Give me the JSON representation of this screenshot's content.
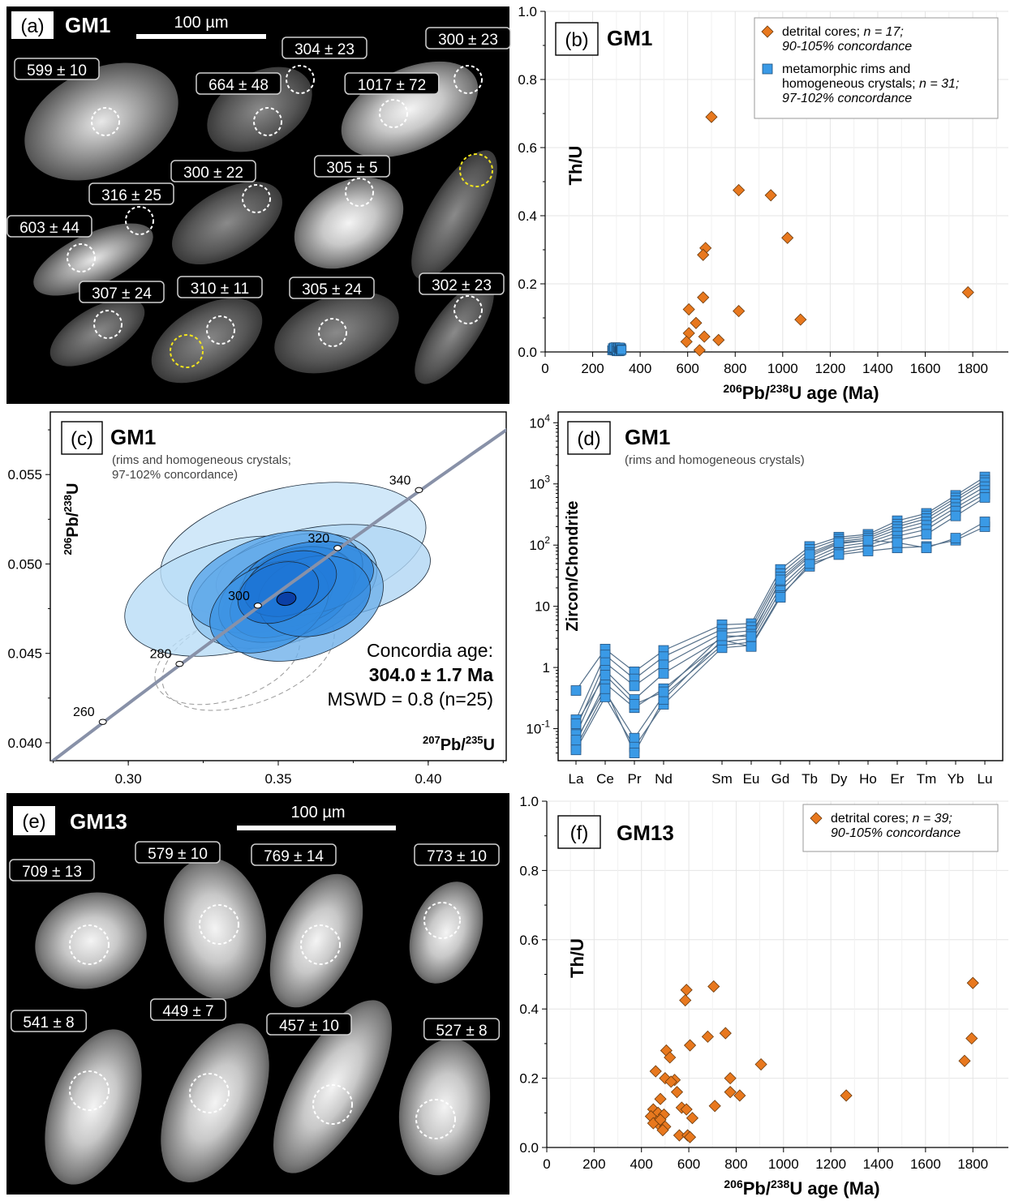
{
  "panels": {
    "a": {
      "letter": "(a)",
      "sample": "GM1",
      "scale": "100 µm",
      "labels": [
        "599 ± 10",
        "664 ± 48",
        "304 ± 23",
        "1017 ± 72",
        "300 ± 23",
        "300 ± 22",
        "305 ± 5",
        "316 ± 25",
        "603 ± 44",
        "307 ± 24",
        "310 ± 11",
        "305 ± 24",
        "302 ± 23"
      ]
    },
    "e": {
      "letter": "(e)",
      "sample": "GM13",
      "scale": "100 µm",
      "labels": [
        "709 ± 13",
        "579 ± 10",
        "769 ± 14",
        "773 ± 10",
        "541 ± 8",
        "449 ± 7",
        "457 ± 10",
        "527 ± 8"
      ]
    }
  },
  "colors": {
    "orange": "#e8781e",
    "blue": "#3a9ae6",
    "concordia": "#8891a8",
    "grid": "#e4e4e4"
  },
  "chart_data": [
    {
      "id": "b",
      "type": "scatter",
      "letter": "(b)",
      "sample": "GM1",
      "xlabel_pre": "206",
      "xlabel_mid": "Pb/",
      "xlabel_sup2": "238",
      "xlabel_post": "U age (Ma)",
      "ylabel": "Th/U",
      "xlim": [
        0,
        1950
      ],
      "ylim": [
        0,
        1.0
      ],
      "xticks": [
        0,
        200,
        400,
        600,
        800,
        1000,
        1200,
        1400,
        1600,
        1800
      ],
      "yticks": [
        0.0,
        0.2,
        0.4,
        0.6,
        0.8,
        1.0
      ],
      "ytick_labels": [
        "0.0",
        "0.2",
        "0.4",
        "0.6",
        "0.8",
        "1.0"
      ],
      "legend": [
        {
          "marker": "diamond",
          "line1": "detrital cores; n = 17;",
          "line2": "90-105% concordance"
        },
        {
          "marker": "square",
          "line1": "metamorphic rims and",
          "line2": "homogeneous crystals; n = 31;",
          "line3": "97-102% concordance"
        }
      ],
      "series": [
        {
          "name": "detrital cores",
          "marker": "diamond",
          "points": [
            [
              700,
              0.69
            ],
            [
              815,
              0.475
            ],
            [
              950,
              0.46
            ],
            [
              1020,
              0.335
            ],
            [
              1780,
              0.175
            ],
            [
              675,
              0.305
            ],
            [
              665,
              0.285
            ],
            [
              665,
              0.16
            ],
            [
              605,
              0.125
            ],
            [
              815,
              0.12
            ],
            [
              1075,
              0.095
            ],
            [
              635,
              0.085
            ],
            [
              605,
              0.055
            ],
            [
              670,
              0.045
            ],
            [
              595,
              0.03
            ],
            [
              730,
              0.035
            ],
            [
              650,
              0.005
            ]
          ]
        },
        {
          "name": "metamorphic rims and homogeneous crystals",
          "marker": "square",
          "points": [
            [
              282,
              0.005
            ],
            [
              287,
              0.008
            ],
            [
              292,
              0.004
            ],
            [
              295,
              0.01
            ],
            [
              298,
              0.006
            ],
            [
              300,
              0.012
            ],
            [
              302,
              0.003
            ],
            [
              304,
              0.008
            ],
            [
              305,
              0.011
            ],
            [
              306,
              0.005
            ],
            [
              308,
              0.009
            ],
            [
              310,
              0.007
            ],
            [
              312,
              0.012
            ],
            [
              314,
              0.004
            ],
            [
              316,
              0.009
            ],
            [
              318,
              0.006
            ],
            [
              320,
              0.011
            ],
            [
              296,
              0.014
            ],
            [
              301,
              0.002
            ],
            [
              309,
              0.013
            ],
            [
              285,
              0.011
            ],
            [
              290,
              0.013
            ],
            [
              299,
              0.009
            ],
            [
              303,
              0.005
            ],
            [
              307,
              0.013
            ],
            [
              311,
              0.002
            ],
            [
              313,
              0.01
            ],
            [
              315,
              0.013
            ],
            [
              317,
              0.003
            ],
            [
              319,
              0.008
            ],
            [
              322,
              0.006
            ]
          ]
        }
      ]
    },
    {
      "id": "c",
      "type": "concordia",
      "letter": "(c)",
      "sample": "GM1",
      "subtitle1": "(rims and homogeneous crystals;",
      "subtitle2": "97-102% concordance)",
      "xlabel_sup": "207",
      "xlabel_post": "Pb/",
      "xlabel_sup2": "235",
      "xlabel_end": "U",
      "ylabel_sup": "206",
      "ylabel_post": "Pb/",
      "ylabel_sup2": "238",
      "ylabel_end": "U",
      "xlim": [
        0.274,
        0.426
      ],
      "ylim": [
        0.039,
        0.0585
      ],
      "xticks": [
        0.3,
        0.35,
        0.4
      ],
      "xtick_labels": [
        "0.30",
        "0.35",
        "0.40"
      ],
      "yticks": [
        0.04,
        0.045,
        0.05,
        0.055
      ],
      "ytick_labels": [
        "0.040",
        "0.045",
        "0.050",
        "0.055"
      ],
      "age_marks": [
        {
          "label": "260",
          "x": 0.2915,
          "y": 0.04117
        },
        {
          "label": "280",
          "x": 0.3171,
          "y": 0.04441
        },
        {
          "label": "300",
          "x": 0.3432,
          "y": 0.04767
        },
        {
          "label": "320",
          "x": 0.3698,
          "y": 0.05089
        },
        {
          "label": "340",
          "x": 0.3969,
          "y": 0.05413
        }
      ],
      "annotation": {
        "line1": "Concordia age:",
        "line2": "304.0 ± 1.7 Ma",
        "line3": "MSWD = 0.8 (n=25)"
      },
      "ellipses": [
        {
          "x": 0.355,
          "y": 0.0508,
          "rx": 0.045,
          "ry": 0.0035,
          "rot": -12,
          "fill": "#c6e2f8"
        },
        {
          "x": 0.335,
          "y": 0.0482,
          "rx": 0.037,
          "ry": 0.0031,
          "rot": -14,
          "fill": "#b8dcf6"
        },
        {
          "x": 0.365,
          "y": 0.0495,
          "rx": 0.036,
          "ry": 0.0026,
          "rot": -8,
          "fill": "#b0d6f4"
        },
        {
          "x": 0.352,
          "y": 0.0485,
          "rx": 0.032,
          "ry": 0.0029,
          "rot": -18,
          "fill": "#8ec4ef"
        },
        {
          "x": 0.358,
          "y": 0.0478,
          "rx": 0.028,
          "ry": 0.003,
          "rot": -20,
          "fill": "#6fb0ea"
        },
        {
          "x": 0.349,
          "y": 0.049,
          "rx": 0.03,
          "ry": 0.0026,
          "rot": -16,
          "fill": "#5aa5e8"
        },
        {
          "x": 0.353,
          "y": 0.0483,
          "rx": 0.024,
          "ry": 0.0024,
          "rot": -22,
          "fill": "#3d93e3"
        },
        {
          "x": 0.356,
          "y": 0.0487,
          "rx": 0.02,
          "ry": 0.0021,
          "rot": -18,
          "fill": "#2b86df"
        },
        {
          "x": 0.351,
          "y": 0.048,
          "rx": 0.018,
          "ry": 0.0019,
          "rot": -24,
          "fill": "#2680dc"
        },
        {
          "x": 0.36,
          "y": 0.0492,
          "rx": 0.022,
          "ry": 0.002,
          "rot": -10,
          "fill": "#3088de"
        },
        {
          "x": 0.347,
          "y": 0.0476,
          "rx": 0.021,
          "ry": 0.0023,
          "rot": -26,
          "fill": "#3d93e3"
        },
        {
          "x": 0.362,
          "y": 0.0482,
          "rx": 0.019,
          "ry": 0.0022,
          "rot": -14,
          "fill": "#2f88de"
        },
        {
          "x": 0.354,
          "y": 0.0489,
          "rx": 0.016,
          "ry": 0.0017,
          "rot": -20,
          "fill": "#2079d8"
        },
        {
          "x": 0.35,
          "y": 0.0484,
          "rx": 0.014,
          "ry": 0.0016,
          "rot": -22,
          "fill": "#1d74d4"
        }
      ],
      "dashed_ellipses": [
        {
          "x": 0.333,
          "y": 0.0446,
          "rx": 0.025,
          "ry": 0.0022,
          "rot": -18
        },
        {
          "x": 0.34,
          "y": 0.0448,
          "rx": 0.03,
          "ry": 0.0026,
          "rot": -20
        }
      ],
      "mean": {
        "x": 0.3527,
        "y": 0.04805
      }
    },
    {
      "id": "d",
      "type": "line",
      "letter": "(d)",
      "sample": "GM1",
      "subtitle": "(rims and homogeneous crystals)",
      "ylabel": "Zircon/Chondrite",
      "yscale": "log",
      "ylim": [
        0.03,
        15000
      ],
      "yticks": [
        0.1,
        1,
        10,
        100,
        1000,
        10000
      ],
      "ytick_labels": [
        {
          "b": "10",
          "e": "-1"
        },
        {
          "b": "1",
          "e": ""
        },
        {
          "b": "10",
          "e": ""
        },
        {
          "b": "10",
          "e": "2"
        },
        {
          "b": "10",
          "e": "3"
        },
        {
          "b": "10",
          "e": "4"
        }
      ],
      "categories": [
        "La",
        "Ce",
        "Pr",
        "Nd",
        "Sm",
        "Eu",
        "Gd",
        "Tb",
        "Dy",
        "Ho",
        "Er",
        "Tm",
        "Yb",
        "Lu"
      ],
      "positions": [
        0,
        1,
        2,
        3,
        5,
        6,
        7,
        8,
        9,
        10,
        11,
        12,
        13,
        14
      ],
      "series": [
        {
          "values": [
            0.42,
            2.0,
            0.85,
            1.9,
            5.0,
            5.2,
            40,
            95,
            135,
            150,
            250,
            330,
            650,
            1300
          ]
        },
        {
          "values": [
            0.14,
            1.6,
            0.65,
            1.5,
            4.2,
            4.6,
            34,
            85,
            125,
            140,
            220,
            300,
            590,
            1150
          ]
        },
        {
          "values": [
            0.1,
            1.2,
            0.5,
            1.1,
            3.6,
            4.0,
            30,
            75,
            115,
            130,
            200,
            270,
            530,
            1050
          ]
        },
        {
          "values": [
            0.08,
            0.9,
            0.3,
            0.8,
            3.0,
            3.5,
            25,
            65,
            105,
            120,
            180,
            240,
            470,
            900
          ]
        },
        {
          "values": [
            0.06,
            0.55,
            0.22,
            0.45,
            2.6,
            3.0,
            21,
            58,
            95,
            110,
            160,
            210,
            410,
            780
          ]
        },
        {
          "values": [
            0.05,
            0.4,
            0.07,
            0.35,
            2.3,
            2.6,
            18,
            52,
            85,
            100,
            140,
            180,
            360,
            680
          ]
        },
        {
          "values": [
            0.045,
            0.33,
            0.05,
            0.25,
            2.1,
            2.3,
            15,
            45,
            75,
            90,
            120,
            150,
            300,
            600
          ]
        },
        {
          "values": [
            0.065,
            0.45,
            0.04,
            0.3,
            2.8,
            2.2,
            14,
            50,
            70,
            80,
            90,
            95,
            120,
            200
          ]
        },
        {
          "values": [
            0.12,
            0.75,
            0.25,
            0.4,
            3.3,
            3.2,
            27,
            70,
            110,
            120,
            110,
            90,
            130,
            240
          ]
        }
      ]
    },
    {
      "id": "f",
      "type": "scatter",
      "letter": "(f)",
      "sample": "GM13",
      "xlabel_pre": "206",
      "xlabel_mid": "Pb/",
      "xlabel_sup2": "238",
      "xlabel_post": "U age (Ma)",
      "ylabel": "Th/U",
      "xlim": [
        0,
        1950
      ],
      "ylim": [
        0,
        1.0
      ],
      "xticks": [
        0,
        200,
        400,
        600,
        800,
        1000,
        1200,
        1400,
        1600,
        1800
      ],
      "yticks": [
        0.0,
        0.2,
        0.4,
        0.6,
        0.8,
        1.0
      ],
      "ytick_labels": [
        "0.0",
        "0.2",
        "0.4",
        "0.6",
        "0.8",
        "1.0"
      ],
      "legend": [
        {
          "marker": "diamond",
          "line1": "detrital cores; n = 39;",
          "line2": "90-105% concordance"
        }
      ],
      "series": [
        {
          "name": "detrital cores",
          "marker": "diamond",
          "points": [
            [
              705,
              0.465
            ],
            [
              590,
              0.455
            ],
            [
              585,
              0.425
            ],
            [
              755,
              0.33
            ],
            [
              680,
              0.32
            ],
            [
              605,
              0.295
            ],
            [
              505,
              0.28
            ],
            [
              520,
              0.26
            ],
            [
              905,
              0.24
            ],
            [
              460,
              0.22
            ],
            [
              500,
              0.2
            ],
            [
              540,
              0.195
            ],
            [
              775,
              0.2
            ],
            [
              525,
              0.19
            ],
            [
              550,
              0.16
            ],
            [
              815,
              0.15
            ],
            [
              775,
              0.16
            ],
            [
              480,
              0.14
            ],
            [
              710,
              0.12
            ],
            [
              570,
              0.115
            ],
            [
              590,
              0.11
            ],
            [
              450,
              0.11
            ],
            [
              470,
              0.1
            ],
            [
              495,
              0.095
            ],
            [
              615,
              0.085
            ],
            [
              440,
              0.09
            ],
            [
              465,
              0.075
            ],
            [
              475,
              0.065
            ],
            [
              450,
              0.07
            ],
            [
              500,
              0.06
            ],
            [
              490,
              0.05
            ],
            [
              560,
              0.035
            ],
            [
              595,
              0.035
            ],
            [
              605,
              0.03
            ],
            [
              1265,
              0.15
            ],
            [
              1800,
              0.475
            ],
            [
              1795,
              0.315
            ],
            [
              1765,
              0.25
            ],
            [
              480,
              0.08
            ]
          ]
        }
      ]
    }
  ]
}
